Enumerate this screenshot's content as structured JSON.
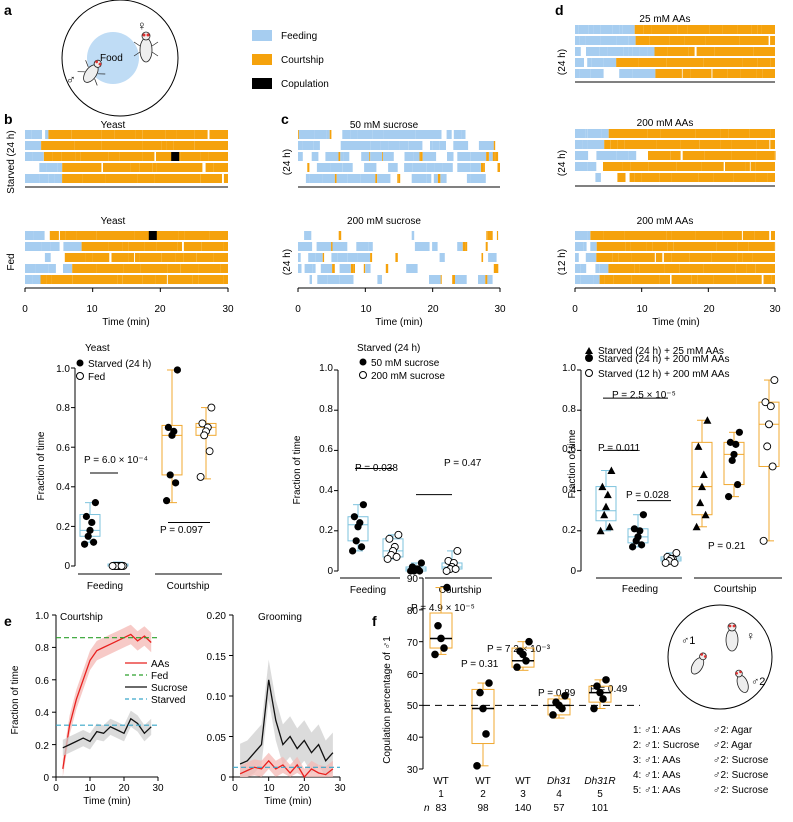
{
  "colors": {
    "feeding": "#a6cdf0",
    "courtship": "#f5a20c",
    "copulation": "#000000",
    "box_yellow": "#f0a830",
    "box_blue": "#7ec3de",
    "line_red": "#e8201e",
    "line_black": "#111111",
    "dash_green": "#2ca02c",
    "dash_blue": "#3aa7c9",
    "band_red": "#f4b8b4",
    "band_grey": "#cfcfcf"
  },
  "panels": {
    "a": "a",
    "b": "b",
    "c": "c",
    "d": "d",
    "e": "e",
    "f": "f"
  },
  "legend": {
    "feeding": "Feeding",
    "courtship": "Courtship",
    "copulation": "Copulation"
  },
  "arena": {
    "food": "Food",
    "female": "♀",
    "male": "♂"
  },
  "raster_titles": {
    "b_top": "Yeast",
    "b_bottom": "Yeast",
    "c_top": "50 mM sucrose",
    "c_bottom": "200 mM sucrose",
    "d_top": "25 mM AAs",
    "d_mid": "200 mM AAs",
    "d_bottom": "200 mM AAs"
  },
  "raster_side": {
    "b_top": "Starved (24 h)",
    "b_bottom": "Fed",
    "c_top": "(24 h)",
    "c_bottom": "(24 h)",
    "d_top": "(24 h)",
    "d_mid": "(24 h)",
    "d_bottom": "(12 h)"
  },
  "time_axis": {
    "label": "Time (min)",
    "ticks": [
      "0",
      "10",
      "20",
      "30"
    ]
  },
  "chart_data": [
    {
      "id": "b-box",
      "type": "box",
      "title": "Yeast",
      "ylabel": "Fraction of time",
      "ylim": [
        0,
        1
      ],
      "yticks": [
        "0",
        "0.2",
        "0.4",
        "0.6",
        "0.8",
        "1.0"
      ],
      "legend": [
        "Starved (24 h)",
        "Fed"
      ],
      "groups": [
        "Feeding",
        "Courtship"
      ],
      "series": [
        {
          "name": "Starved (24 h)",
          "group": "Feeding",
          "box": [
            0.12,
            0.15,
            0.18,
            0.26,
            0.32
          ],
          "values": [
            0.32,
            0.25,
            0.22,
            0.18,
            0.15,
            0.12,
            0.11
          ]
        },
        {
          "name": "Fed",
          "group": "Feeding",
          "box": [
            0,
            0,
            0,
            0.01,
            0.02
          ],
          "values": [
            0,
            0,
            0,
            0,
            0,
            0,
            0
          ]
        },
        {
          "name": "Starved (24 h)",
          "group": "Courtship",
          "box": [
            0.32,
            0.46,
            0.66,
            0.71,
            0.99
          ],
          "values": [
            0.99,
            0.7,
            0.68,
            0.66,
            0.46,
            0.42,
            0.33
          ]
        },
        {
          "name": "Fed",
          "group": "Courtship",
          "box": [
            0.44,
            0.66,
            0.7,
            0.72,
            0.8
          ],
          "values": [
            0.8,
            0.72,
            0.7,
            0.68,
            0.66,
            0.58,
            0.45
          ]
        }
      ],
      "pvalues": [
        "P = 6.0 × 10⁻⁴",
        "P = 0.097"
      ]
    },
    {
      "id": "c-box",
      "type": "box",
      "title": "Starved (24 h)",
      "ylabel": "Fraction of time",
      "ylim": [
        0,
        1
      ],
      "yticks": [
        "0",
        "0.2",
        "0.4",
        "0.6",
        "0.8",
        "1.0"
      ],
      "legend": [
        "50 mM sucrose",
        "200 mM sucrose"
      ],
      "groups": [
        "Feeding",
        "Courtship"
      ],
      "series": [
        {
          "name": "50 mM sucrose",
          "group": "Feeding",
          "box": [
            0.1,
            0.15,
            0.23,
            0.27,
            0.33
          ],
          "values": [
            0.33,
            0.27,
            0.24,
            0.22,
            0.15,
            0.12,
            0.1
          ]
        },
        {
          "name": "200 mM sucrose",
          "group": "Feeding",
          "box": [
            0.06,
            0.07,
            0.1,
            0.16,
            0.18
          ],
          "values": [
            0.18,
            0.16,
            0.12,
            0.1,
            0.08,
            0.07,
            0.06
          ]
        },
        {
          "name": "50 mM sucrose",
          "group": "Courtship",
          "box": [
            0,
            0,
            0.01,
            0.02,
            0.04
          ],
          "values": [
            0.04,
            0.02,
            0.01,
            0.01,
            0,
            0,
            0
          ]
        },
        {
          "name": "200 mM sucrose",
          "group": "Courtship",
          "box": [
            0,
            0.01,
            0.02,
            0.04,
            0.1
          ],
          "values": [
            0.1,
            0.05,
            0.04,
            0.02,
            0.01,
            0.01,
            0
          ]
        }
      ],
      "pvalues": [
        "P = 0.038",
        "P = 0.47"
      ]
    },
    {
      "id": "d-box",
      "type": "box",
      "ylabel": "Fraction of time",
      "ylim": [
        0,
        1
      ],
      "yticks": [
        "0",
        "0.2",
        "0.4",
        "0.6",
        "0.8",
        "1.0"
      ],
      "legend": [
        "Starved (24 h) + 25 mM AAs",
        "Starved (24 h) + 200 mM AAs",
        "Starved (12 h) + 200 mM AAs"
      ],
      "groups": [
        "Feeding",
        "Courtship"
      ],
      "series": [
        {
          "name": "Starved (24 h) + 25 mM AAs",
          "group": "Feeding",
          "box": [
            0.2,
            0.25,
            0.3,
            0.42,
            0.5
          ],
          "values": [
            0.5,
            0.42,
            0.38,
            0.32,
            0.28,
            0.22,
            0.2
          ]
        },
        {
          "name": "Starved (24 h) + 200 mM AAs",
          "group": "Feeding",
          "box": [
            0.12,
            0.14,
            0.17,
            0.21,
            0.28
          ],
          "values": [
            0.28,
            0.21,
            0.2,
            0.17,
            0.15,
            0.13,
            0.12
          ]
        },
        {
          "name": "Starved (12 h) + 200 mM AAs",
          "group": "Feeding",
          "box": [
            0.04,
            0.05,
            0.06,
            0.07,
            0.09
          ],
          "values": [
            0.09,
            0.07,
            0.06,
            0.06,
            0.05,
            0.04,
            0.04
          ]
        },
        {
          "name": "Starved (24 h) + 25 mM AAs",
          "group": "Courtship",
          "box": [
            0.22,
            0.28,
            0.42,
            0.64,
            0.75
          ],
          "values": [
            0.75,
            0.62,
            0.48,
            0.42,
            0.34,
            0.28,
            0.22
          ]
        },
        {
          "name": "Starved (24 h) + 200 mM AAs",
          "group": "Courtship",
          "box": [
            0.37,
            0.43,
            0.58,
            0.64,
            0.69
          ],
          "values": [
            0.69,
            0.64,
            0.63,
            0.58,
            0.55,
            0.43,
            0.37
          ]
        },
        {
          "name": "Starved (12 h) + 200 mM AAs",
          "group": "Courtship",
          "box": [
            0.15,
            0.52,
            0.73,
            0.84,
            0.95
          ],
          "values": [
            0.95,
            0.84,
            0.82,
            0.73,
            0.62,
            0.52,
            0.15
          ]
        }
      ],
      "pvalues": [
        "P = 2.5 × 10⁻⁵",
        "P = 0.011",
        "P = 0.028",
        "P = 0.21"
      ]
    },
    {
      "id": "e-courtship",
      "type": "line",
      "title": "Courtship",
      "xlabel": "Time (min)",
      "ylabel": "Fraction of time",
      "xlim": [
        0,
        30
      ],
      "ylim": [
        0,
        1
      ],
      "xticks": [
        "0",
        "10",
        "20",
        "30"
      ],
      "yticks": [
        "0",
        "0.2",
        "0.4",
        "0.6",
        "0.8",
        "1.0"
      ],
      "legend": [
        "AAs",
        "Fed",
        "Sucrose",
        "Starved"
      ],
      "x": [
        2,
        4,
        6,
        8,
        10,
        12,
        14,
        16,
        18,
        20,
        22,
        24,
        26,
        28
      ],
      "series": [
        {
          "name": "AAs",
          "values": [
            0.05,
            0.32,
            0.48,
            0.6,
            0.72,
            0.78,
            0.8,
            0.82,
            0.84,
            0.86,
            0.88,
            0.84,
            0.87,
            0.83
          ],
          "band": 0.06
        },
        {
          "name": "Sucrose",
          "values": [
            0.18,
            0.2,
            0.22,
            0.24,
            0.22,
            0.28,
            0.27,
            0.31,
            0.29,
            0.27,
            0.36,
            0.33,
            0.27,
            0.31
          ],
          "band": 0.05
        }
      ],
      "hlines": [
        {
          "name": "Fed",
          "value": 0.86
        },
        {
          "name": "Starved",
          "value": 0.32
        }
      ]
    },
    {
      "id": "e-grooming",
      "type": "line",
      "title": "Grooming",
      "xlabel": "Time (min)",
      "xlim": [
        0,
        30
      ],
      "ylim": [
        0,
        0.2
      ],
      "xticks": [
        "0",
        "10",
        "20",
        "30"
      ],
      "yticks": [
        "0",
        "0.05",
        "0.10",
        "0.15",
        "0.20"
      ],
      "x": [
        2,
        4,
        6,
        8,
        10,
        12,
        14,
        16,
        18,
        20,
        22,
        24,
        26,
        28
      ],
      "series": [
        {
          "name": "Sucrose",
          "values": [
            0.016,
            0.02,
            0.03,
            0.04,
            0.12,
            0.07,
            0.04,
            0.05,
            0.035,
            0.045,
            0.03,
            0.04,
            0.02,
            0.03
          ],
          "band": 0.025
        },
        {
          "name": "AAs",
          "values": [
            0.004,
            0.008,
            0.012,
            0.01,
            0.02,
            0.01,
            0.015,
            0.005,
            0.015,
            0.0,
            0.01,
            0.005,
            0.003,
            0.01
          ],
          "band": 0.01
        }
      ],
      "hlines": [
        {
          "name": "Starved",
          "value": 0.012
        }
      ]
    },
    {
      "id": "f-box",
      "type": "box",
      "ylabel": "Copulation percentage of ♂1",
      "ylim": [
        30,
        90
      ],
      "yticks": [
        "30",
        "40",
        "50",
        "60",
        "70",
        "80",
        "90"
      ],
      "categories": [
        {
          "genotype": "WT",
          "num": "1",
          "n": "83"
        },
        {
          "genotype": "WT",
          "num": "2",
          "n": "98"
        },
        {
          "genotype": "WT",
          "num": "3",
          "n": "140"
        },
        {
          "genotype": "Dh31",
          "num": "4",
          "n": "57"
        },
        {
          "genotype": "Dh31R",
          "num": "5",
          "n": "101"
        }
      ],
      "n_label": "n",
      "series": [
        {
          "name": "1",
          "box": [
            66,
            68,
            71,
            79,
            87
          ],
          "values": [
            87,
            75,
            71,
            68,
            66
          ]
        },
        {
          "name": "2",
          "box": [
            31,
            38,
            49,
            55,
            57
          ],
          "values": [
            57,
            54,
            49,
            41,
            31
          ]
        },
        {
          "name": "3",
          "box": [
            61,
            62,
            64,
            68,
            70
          ],
          "values": [
            70,
            67,
            66,
            64,
            62
          ]
        },
        {
          "name": "4",
          "box": [
            46,
            47,
            50,
            52,
            53
          ],
          "values": [
            53,
            51,
            50,
            49,
            47
          ]
        },
        {
          "name": "5",
          "box": [
            49,
            51,
            54,
            56,
            58
          ],
          "values": [
            58,
            56,
            54,
            52,
            49
          ]
        }
      ],
      "pvalues": [
        "P = 4.9 × 10⁻⁵",
        "P = 0.31",
        "P = 7.2 × 10⁻³",
        "P = 0.89",
        "P = 0.49"
      ],
      "reference": 50,
      "key": [
        {
          "left": "1: ♂1: AAs",
          "right": "♂2: Agar"
        },
        {
          "left": "2: ♂1: Sucrose",
          "right": "♂2: Agar"
        },
        {
          "left": "3: ♂1: AAs",
          "right": "♂2: Sucrose"
        },
        {
          "left": "4: ♂1: AAs",
          "right": "♂2: Sucrose"
        },
        {
          "left": "5: ♂1: AAs",
          "right": "♂2: Sucrose"
        }
      ],
      "arena_labels": [
        "♂1",
        "♀",
        "♂2"
      ]
    }
  ]
}
